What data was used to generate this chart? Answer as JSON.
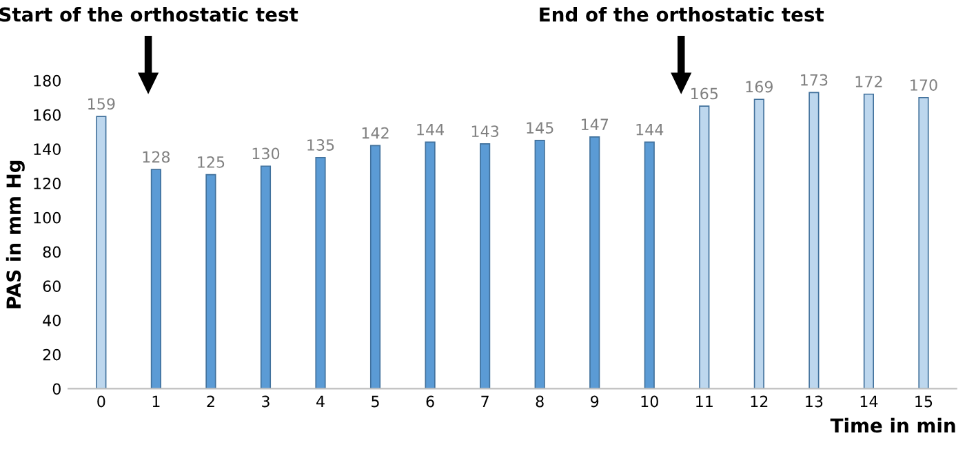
{
  "chart_data": {
    "type": "bar",
    "xlabel": "Time in min",
    "ylabel": "PAS in mm Hg",
    "categories": [
      "0",
      "1",
      "2",
      "3",
      "4",
      "5",
      "6",
      "7",
      "8",
      "9",
      "10",
      "11",
      "12",
      "13",
      "14",
      "15"
    ],
    "values": [
      159,
      128,
      125,
      130,
      135,
      142,
      144,
      143,
      145,
      147,
      144,
      165,
      169,
      173,
      172,
      170
    ],
    "colors": [
      "#bdd7ee",
      "#5b9bd5",
      "#5b9bd5",
      "#5b9bd5",
      "#5b9bd5",
      "#5b9bd5",
      "#5b9bd5",
      "#5b9bd5",
      "#5b9bd5",
      "#5b9bd5",
      "#5b9bd5",
      "#bdd7ee",
      "#bdd7ee",
      "#bdd7ee",
      "#bdd7ee",
      "#bdd7ee"
    ],
    "ylim": [
      0,
      180
    ],
    "yticks": [
      0,
      20,
      40,
      60,
      80,
      100,
      120,
      140,
      160,
      180
    ],
    "data_labels": true,
    "grid": false,
    "legend": false,
    "annotations": [
      "Start of the orthostatic test",
      "End of the orthostatic test"
    ]
  }
}
